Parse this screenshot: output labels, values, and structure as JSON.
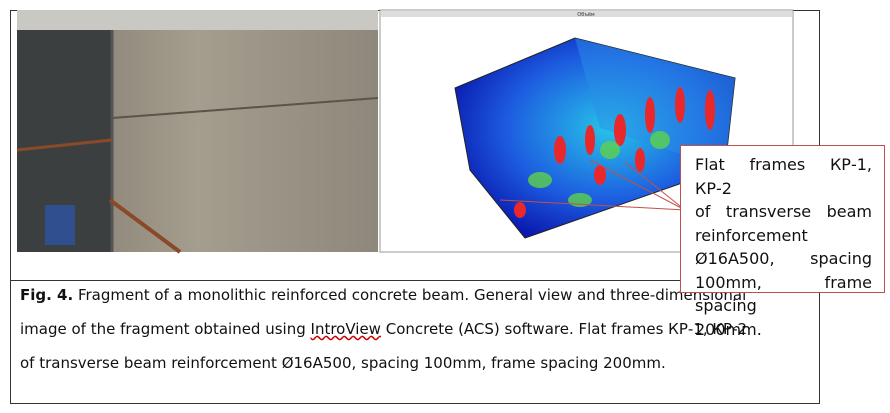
{
  "figure": {
    "window_title": "Объём"
  },
  "callout": {
    "lines": [
      "Flat frames КР-1, КР-2",
      "of transverse beam",
      "reinforcement",
      "Ø16A500, spacing",
      "100mm, frame spacing",
      "200mm."
    ]
  },
  "caption": {
    "label": "Fig. 4.",
    "line1": "Fragment of a monolithic reinforced concrete beam. General view and three-dimensional",
    "line2": [
      "image of the fragment obtained using ",
      "IntroView",
      " Concrete (ACS) software. Flat frames КР-1, КР-2"
    ],
    "line3": "of transverse beam reinforcement Ø16A500, spacing 100mm, frame spacing 200mm."
  }
}
